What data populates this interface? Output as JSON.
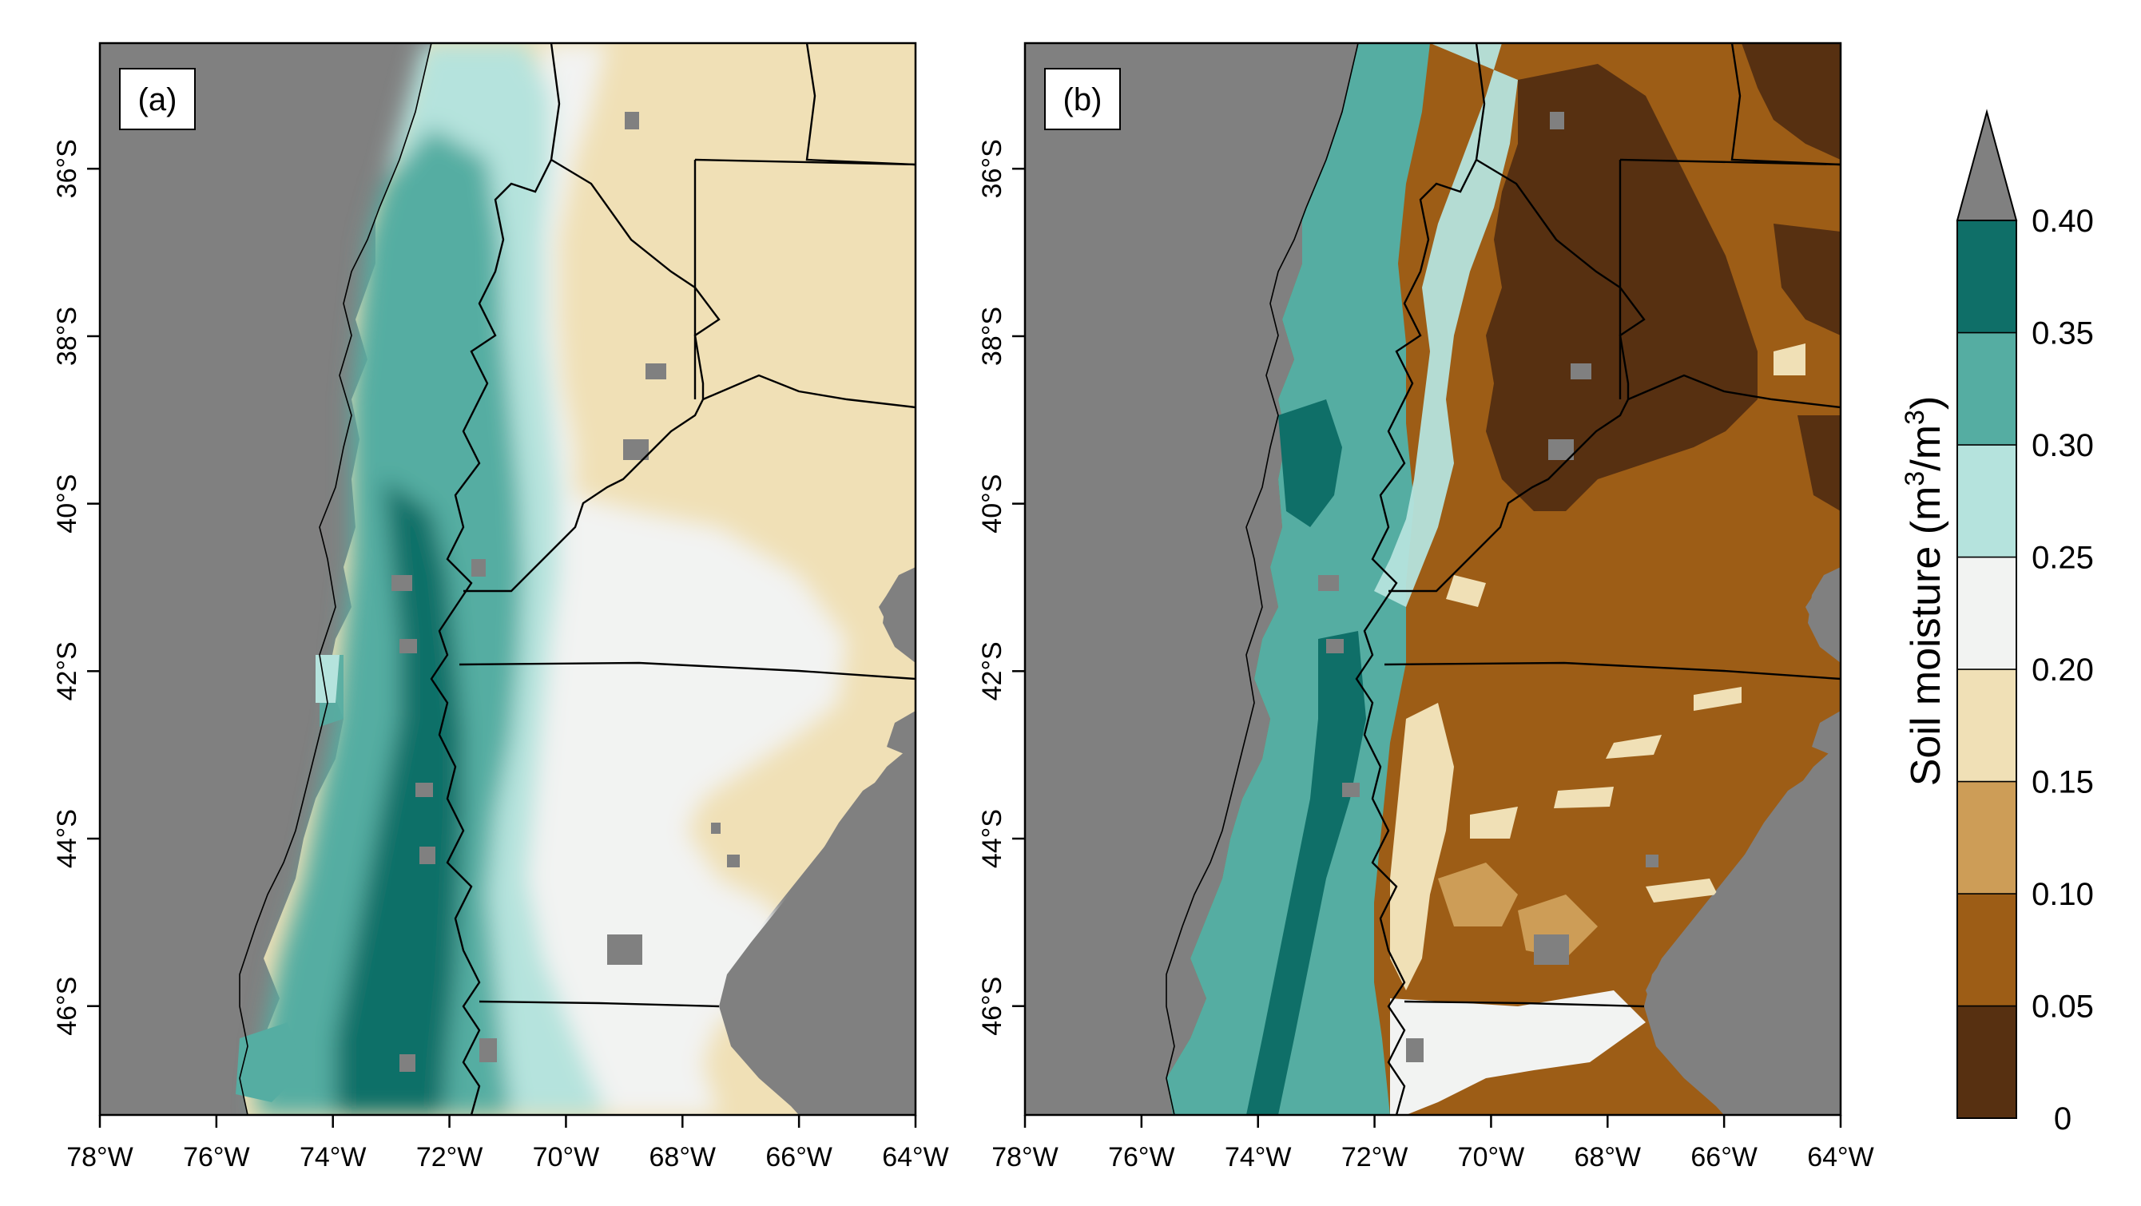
{
  "panels": [
    {
      "id": "a",
      "label": "(a)",
      "x_ticks": [
        "78°W",
        "76°W",
        "74°W",
        "72°W",
        "70°W",
        "68°W",
        "66°W",
        "64°W"
      ],
      "y_ticks": [
        "36°S",
        "38°S",
        "40°S",
        "42°S",
        "44°S",
        "46°S"
      ]
    },
    {
      "id": "b",
      "label": "(b)",
      "x_ticks": [
        "78°W",
        "76°W",
        "74°W",
        "72°W",
        "70°W",
        "68°W",
        "66°W",
        "64°W"
      ],
      "y_ticks": [
        "36°S",
        "38°S",
        "40°S",
        "42°S",
        "44°S",
        "46°S"
      ]
    }
  ],
  "extent": {
    "lon_range": [
      -78,
      -64
    ],
    "lat_range": [
      -47.3,
      -34.5
    ]
  },
  "colorbar": {
    "title": "Soil moisture (m",
    "title_sup1": "3",
    "title_mid": "/m",
    "title_sup2": "3",
    "title_end": ")",
    "tick_labels": [
      "0",
      "0.05",
      "0.10",
      "0.15",
      "0.20",
      "0.25",
      "0.30",
      "0.35",
      "0.40"
    ],
    "bins": [
      {
        "range": [
          0.0,
          0.05
        ],
        "color": "#573011"
      },
      {
        "range": [
          0.05,
          0.1
        ],
        "color": "#9d5d16"
      },
      {
        "range": [
          0.1,
          0.15
        ],
        "color": "#cd9d57"
      },
      {
        "range": [
          0.15,
          0.2
        ],
        "color": "#f0e0b6"
      },
      {
        "range": [
          0.2,
          0.25
        ],
        "color": "#f2f3f2"
      },
      {
        "range": [
          0.25,
          0.3
        ],
        "color": "#b5e3dd"
      },
      {
        "range": [
          0.3,
          0.35
        ],
        "color": "#55ada2"
      },
      {
        "range": [
          0.35,
          0.4
        ],
        "color": "#0f6f68"
      }
    ],
    "over_color": "#808080",
    "missing_color": "#808080"
  }
}
